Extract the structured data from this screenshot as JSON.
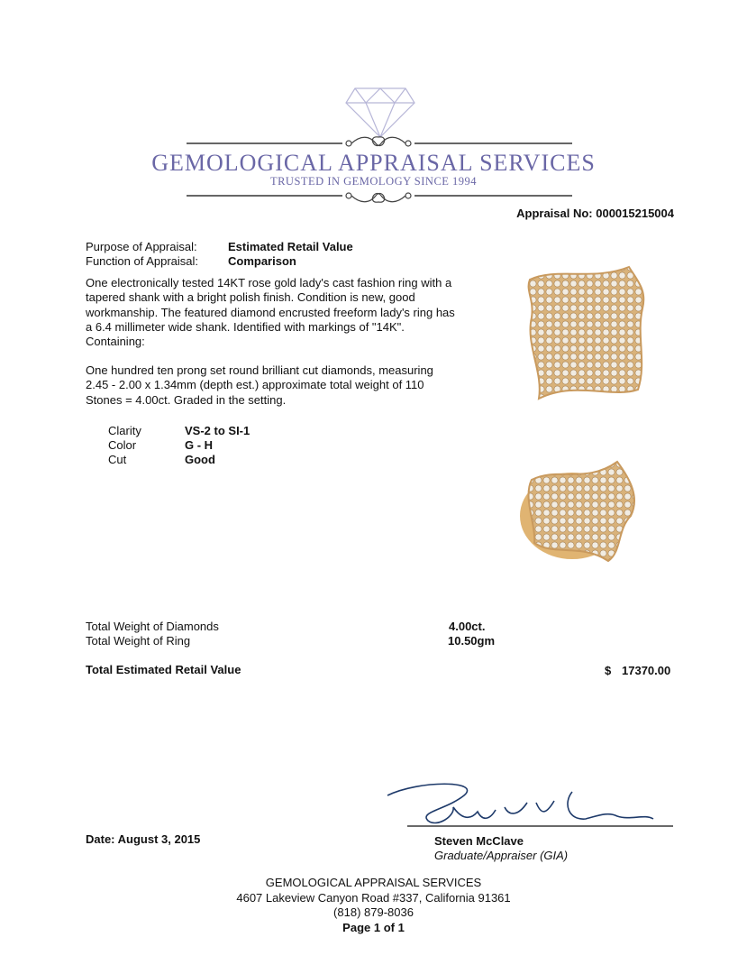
{
  "header": {
    "company": "GEMOLOGICAL APPRAISAL SERVICES",
    "tagline": "TRUSTED IN GEMOLOGY SINCE 1994",
    "accent_color": "#6a67a6",
    "logo_icon": "diamond-icon"
  },
  "appraisal_no": "Appraisal No: 000015215004",
  "purpose": {
    "label": "Purpose of Appraisal:",
    "value": "Estimated Retail Value"
  },
  "function": {
    "label": "Function of Appraisal:",
    "value": "Comparison"
  },
  "description": "One electronically tested 14KT rose gold lady's cast fashion ring with a tapered shank with a bright polish finish. Condition is new, good workmanship. The featured diamond encrusted freeform lady's ring has a 6.4 millimeter wide shank. Identified with markings of \"14K\".  Containing:",
  "stones": "One hundred ten prong set round brilliant cut diamonds, measuring 2.45 - 2.00 x 1.34mm (depth est.) approximate total weight of 110 Stones = 4.00ct. Graded in the setting.",
  "grades": [
    {
      "label": "Clarity",
      "value": "VS-2 to SI-1"
    },
    {
      "label": "Color",
      "value": "G - H"
    },
    {
      "label": "Cut",
      "value": "Good"
    }
  ],
  "totals": [
    {
      "label": "Total Weight of Diamonds",
      "value": "4.00ct."
    },
    {
      "label": "Total Weight of Ring",
      "value": "10.50gm"
    }
  ],
  "retail": {
    "label": "Total Estimated Retail Value",
    "currency": "$",
    "value": "17370.00"
  },
  "date": "Date: August 3, 2015",
  "appraiser": {
    "name": "Steven McClave",
    "title": "Graduate/Appraiser (GIA)"
  },
  "footer": {
    "company": "GEMOLOGICAL APPRAISAL SERVICES",
    "address": "4607 Lakeview Canyon Road #337, California 91361",
    "phone": "(818) 879-8036",
    "page": "Page 1 of 1"
  }
}
